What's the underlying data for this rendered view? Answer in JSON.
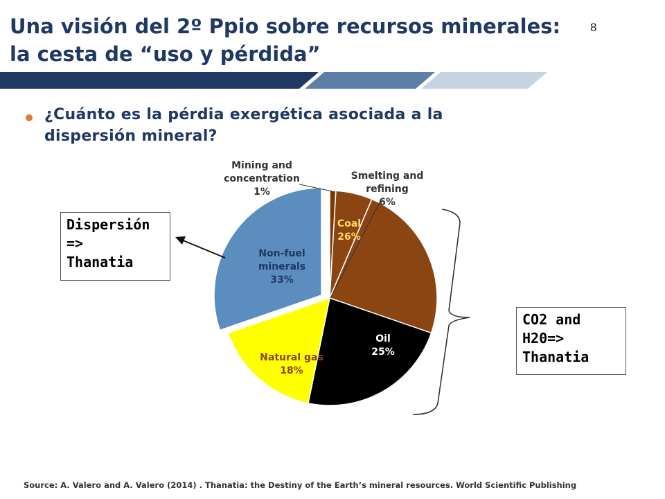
{
  "header": {
    "title_line1": "Una visión del 2º Ppio sobre recursos minerales:",
    "title_line2": "la cesta de “uso y pérdida”",
    "slide_number": "8"
  },
  "bullet": {
    "line1": "¿Cuánto es la pérdia exergética asociada a la",
    "line2": "dispersión mineral?"
  },
  "callout_left": {
    "line1": "Dispersión",
    "line2": "=>",
    "line3": "Thanatia"
  },
  "callout_right": {
    "line1": "CO2 and",
    "line2": "H20=>",
    "line3": "Thanatia"
  },
  "source": "Source: A. Valero and A. Valero (2014) . Thanatia: the Destiny of the Earth’s mineral resources. World Scientific Publishing",
  "colors": {
    "title": "#1f3864",
    "bullet": "#e07b39",
    "bar_dark": "#1f3864",
    "bar_mid": "#5b7fa6",
    "bar_light": "#c5d3e3"
  },
  "chart_data": {
    "type": "pie",
    "slices": [
      {
        "name": "Mining and concentration",
        "value": 1,
        "label_lines": [
          "Mining and",
          "concentration",
          "1%"
        ],
        "color": "#7a3a08"
      },
      {
        "name": "Smelting and refining",
        "value": 6,
        "label_lines": [
          "Smelting and",
          "refining",
          "6%"
        ],
        "color": "#8b4513"
      },
      {
        "name": "Coal",
        "value": 26,
        "label_lines": [
          "Coal",
          "26%"
        ],
        "color": "#8b4513"
      },
      {
        "name": "Oil",
        "value": 25,
        "label_lines": [
          "Oil",
          "25%"
        ],
        "color": "#000000"
      },
      {
        "name": "Natural gas",
        "value": 18,
        "label_lines": [
          "Natural gas",
          "18%"
        ],
        "color": "#ffff00"
      },
      {
        "name": "Non-fuel minerals",
        "value": 33,
        "label_lines": [
          "Non-fuel",
          "minerals",
          "33%"
        ],
        "color": "#5b8dbf"
      }
    ]
  }
}
